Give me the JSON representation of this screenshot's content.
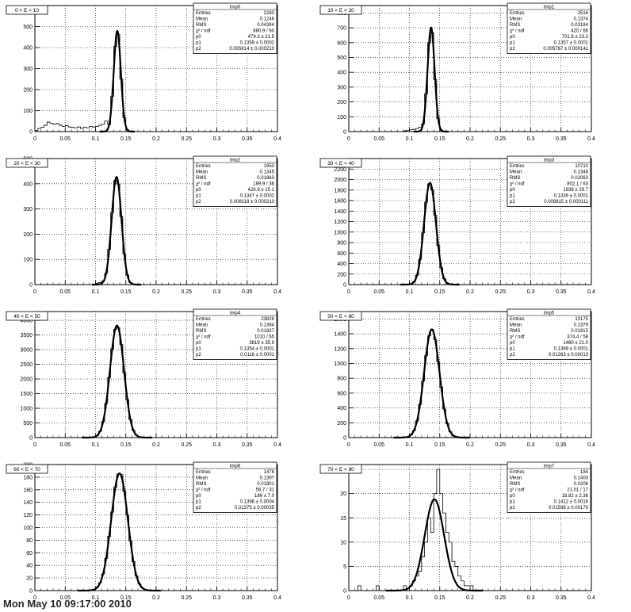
{
  "footer_text": "Mon May 10 09:17:00 2010",
  "x_ticks": [
    "0",
    "0.05",
    "0.1",
    "0.15",
    "0.2",
    "0.25",
    "0.3",
    "0.35",
    "0.4"
  ],
  "stat_labels": {
    "entries": "Entries",
    "mean": "Mean",
    "rms": "RMS",
    "chi2": "χ² / ndf",
    "p0": "p0",
    "p1": "p1",
    "p2": "p2"
  },
  "chart_data": [
    {
      "type": "histogram",
      "title": "0 < E < 10",
      "stat_box": {
        "name": "tmp0",
        "entries": "2283",
        "mean": "0.1246",
        "rms": "0.04394",
        "chi2": "880.9 / 60",
        "p0": "479.3 ± 21.5",
        "p1": "0.1359 ± 0.0002",
        "p2": "0.005814 ± 0.000210"
      },
      "xlim": [
        0,
        0.4
      ],
      "ylim": [
        0,
        600
      ],
      "y_ticks": [
        0,
        100,
        200,
        300,
        400,
        500
      ],
      "fit": {
        "p0": 479.3,
        "p1": 0.1359,
        "p2": 0.005814
      },
      "background": [
        [
          0.0,
          5
        ],
        [
          0.005,
          15
        ],
        [
          0.01,
          20
        ],
        [
          0.015,
          30
        ],
        [
          0.02,
          45
        ],
        [
          0.025,
          40
        ],
        [
          0.03,
          35
        ],
        [
          0.035,
          38
        ],
        [
          0.04,
          30
        ],
        [
          0.045,
          25
        ],
        [
          0.05,
          28
        ],
        [
          0.055,
          22
        ],
        [
          0.06,
          20
        ],
        [
          0.065,
          18
        ],
        [
          0.07,
          22
        ],
        [
          0.075,
          15
        ],
        [
          0.08,
          20
        ],
        [
          0.085,
          18
        ],
        [
          0.09,
          25
        ],
        [
          0.095,
          22
        ],
        [
          0.1,
          25
        ],
        [
          0.105,
          30
        ],
        [
          0.11,
          35
        ],
        [
          0.115,
          50
        ]
      ],
      "bin_width": 0.005
    },
    {
      "type": "histogram",
      "title": "10 < E < 20",
      "stat_box": {
        "name": "tmp1",
        "entries": "2516",
        "mean": "0.1374",
        "rms": "0.03184",
        "chi2": "420 / 66",
        "p0": "701.8 ± 23.2",
        "p1": "0.1357 ± 0.0001",
        "p2": "0.005767 ± 0.000141"
      },
      "xlim": [
        0,
        0.4
      ],
      "ylim": [
        0,
        850
      ],
      "y_ticks": [
        0,
        100,
        200,
        300,
        400,
        500,
        600,
        700,
        800
      ],
      "fit": {
        "p0": 701.8,
        "p1": 0.1357,
        "p2": 0.005767
      },
      "background": [
        [
          0.09,
          5
        ],
        [
          0.095,
          8
        ],
        [
          0.1,
          12
        ],
        [
          0.105,
          15
        ],
        [
          0.11,
          20
        ],
        [
          0.115,
          30
        ]
      ],
      "bin_width": 0.005
    },
    {
      "type": "histogram",
      "title": "20 < E < 30",
      "stat_box": {
        "name": "tmp2",
        "entries": "1953",
        "mean": "0.1345",
        "rms": "0.01863",
        "chi2": "189.9 / 36",
        "p0": "426.9 ± 15.1",
        "p1": "0.1347 ± 0.0002",
        "p2": "0.008118 ± 0.000210"
      },
      "xlim": [
        0,
        0.4
      ],
      "ylim": [
        0,
        500
      ],
      "y_ticks": [
        0,
        100,
        200,
        300,
        400,
        500
      ],
      "fit": {
        "p0": 426.9,
        "p1": 0.1347,
        "p2": 0.008118
      },
      "background": [
        [
          0.1,
          5
        ],
        [
          0.105,
          8
        ],
        [
          0.11,
          15
        ]
      ],
      "bin_width": 0.005
    },
    {
      "type": "histogram",
      "title": "30 < E < 40",
      "stat_box": {
        "name": "tmp3",
        "entries": "10710",
        "mean": "0.1348",
        "rms": "0.02063",
        "chi2": "802.1 / 63",
        "p0": "1938 ± 29.7",
        "p1": "0.1339 ± 0.0001",
        "p2": "0.009815 ± 0.000111"
      },
      "xlim": [
        0,
        0.4
      ],
      "ylim": [
        0,
        2400
      ],
      "y_ticks": [
        0,
        200,
        400,
        600,
        800,
        1000,
        1200,
        1400,
        1600,
        1800,
        2000,
        2200
      ],
      "fit": {
        "p0": 1938,
        "p1": 0.1339,
        "p2": 0.009815
      },
      "background": [
        [
          0.1,
          10
        ],
        [
          0.105,
          20
        ],
        [
          0.11,
          40
        ]
      ],
      "bin_width": 0.005
    },
    {
      "type": "histogram",
      "title": "40 < E < 50",
      "stat_box": {
        "name": "tmp4",
        "entries": "23828",
        "mean": "0.1364",
        "rms": "0.01837",
        "chi2": "1010 / 65",
        "p0": "3819 ± 35.9",
        "p1": "0.1354 ± 0.0001",
        "p2": "0.0116 ± 0.0001"
      },
      "xlim": [
        0,
        0.4
      ],
      "ylim": [
        0,
        4300
      ],
      "y_ticks": [
        0,
        500,
        1000,
        1500,
        2000,
        2500,
        3000,
        3500,
        4000
      ],
      "fit": {
        "p0": 3819,
        "p1": 0.1354,
        "p2": 0.0116
      },
      "background": [
        [
          0.095,
          20
        ],
        [
          0.1,
          40
        ],
        [
          0.105,
          80
        ]
      ],
      "bin_width": 0.005
    },
    {
      "type": "histogram",
      "title": "50 < E < 60",
      "stat_box": {
        "name": "tmp5",
        "entries": "10175",
        "mean": "0.1379",
        "rms": "0.01815",
        "chi2": "374.4 / 58",
        "p0": "1460 ± 21.0",
        "p1": "0.1369 ± 0.0001",
        "p2": "0.01263 ± 0.00013"
      },
      "xlim": [
        0,
        0.4
      ],
      "ylim": [
        0,
        1700
      ],
      "y_ticks": [
        0,
        200,
        400,
        600,
        800,
        1000,
        1200,
        1400,
        1600
      ],
      "fit": {
        "p0": 1460,
        "p1": 0.1369,
        "p2": 0.01263
      },
      "background": [],
      "bin_width": 0.005
    },
    {
      "type": "histogram",
      "title": "60 < E < 70",
      "stat_box": {
        "name": "tmp6",
        "entries": "1478",
        "mean": "0.1397",
        "rms": "0.01801",
        "chi2": "56.7 / 31",
        "p0": "186 ± 7.0",
        "p1": "0.1396 ± 0.0004",
        "p2": "0.01375 ± 0.00035"
      },
      "xlim": [
        0,
        0.4
      ],
      "ylim": [
        0,
        200
      ],
      "y_ticks": [
        0,
        20,
        40,
        60,
        80,
        100,
        120,
        140,
        160,
        180,
        200
      ],
      "fit": {
        "p0": 186,
        "p1": 0.1396,
        "p2": 0.01375
      },
      "background": [],
      "bin_width": 0.005
    },
    {
      "type": "histogram",
      "title": "70 < E < 80",
      "stat_box": {
        "name": "tmp7",
        "entries": "184",
        "mean": "0.1403",
        "rms": "0.0206",
        "chi2": "21.01 / 17",
        "p0": "18.82 ± 2.36",
        "p1": "0.1412 ± 0.0016",
        "p2": "0.01598 ± 0.00170"
      },
      "xlim": [
        0,
        0.4
      ],
      "ylim": [
        0,
        26
      ],
      "y_ticks": [
        0,
        5,
        10,
        15,
        20,
        25
      ],
      "fit": {
        "p0": 18.82,
        "p1": 0.1412,
        "p2": 0.01598
      },
      "counts": [
        [
          0.015,
          1
        ],
        [
          0.045,
          1
        ],
        [
          0.09,
          1
        ],
        [
          0.095,
          0
        ],
        [
          0.1,
          1
        ],
        [
          0.105,
          2
        ],
        [
          0.11,
          3
        ],
        [
          0.115,
          4
        ],
        [
          0.12,
          7
        ],
        [
          0.125,
          10
        ],
        [
          0.13,
          15
        ],
        [
          0.135,
          12
        ],
        [
          0.14,
          20
        ],
        [
          0.145,
          25
        ],
        [
          0.15,
          20
        ],
        [
          0.155,
          16
        ],
        [
          0.16,
          12
        ],
        [
          0.165,
          10
        ],
        [
          0.17,
          6
        ],
        [
          0.175,
          5
        ],
        [
          0.18,
          3
        ],
        [
          0.185,
          2
        ],
        [
          0.19,
          1
        ],
        [
          0.195,
          1
        ],
        [
          0.2,
          1
        ]
      ],
      "bin_width": 0.005
    }
  ]
}
